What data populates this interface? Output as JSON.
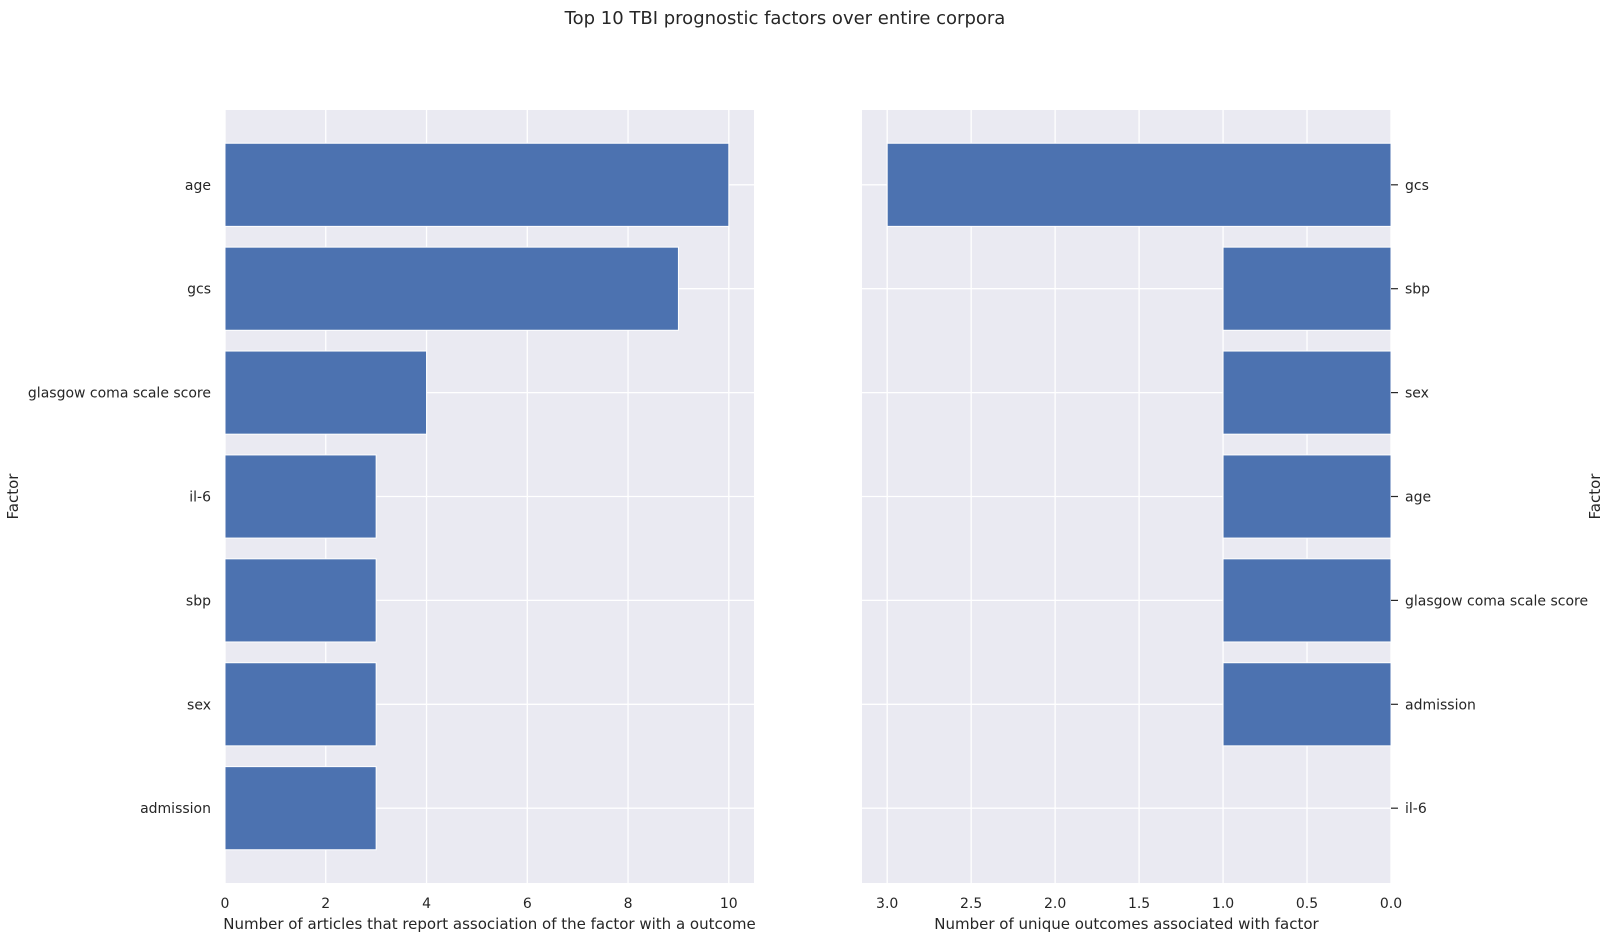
{
  "figure_title": "Top 10 TBI prognostic factors over entire corpora",
  "chart_data": [
    {
      "type": "bar",
      "orientation": "horizontal",
      "categories": [
        "age",
        "gcs",
        "glasgow coma scale score",
        "il-6",
        "sbp",
        "sex",
        "admission"
      ],
      "values": [
        10,
        9,
        4,
        3,
        3,
        3,
        3
      ],
      "xlabel": "Number of articles that report association of the factor with a outcome",
      "ylabel": "Factor",
      "xlim": [
        0,
        10.5
      ],
      "xticks": [
        "0",
        "2",
        "4",
        "6",
        "8",
        "10"
      ],
      "x_inverted": false,
      "yaxis_side": "left",
      "grid": true,
      "bar_color": "#4c72b0",
      "background": "#eaeaf2"
    },
    {
      "type": "bar",
      "orientation": "horizontal",
      "categories": [
        "gcs",
        "sbp",
        "sex",
        "age",
        "glasgow coma scale score",
        "admission",
        "il-6"
      ],
      "values": [
        3,
        1,
        1,
        1,
        1,
        1,
        0
      ],
      "xlabel": "Number of unique outcomes associated with factor",
      "ylabel": "Factor",
      "xlim": [
        0,
        3.15
      ],
      "xticks": [
        "3.0",
        "2.5",
        "2.0",
        "1.5",
        "1.0",
        "0.5",
        "0.0"
      ],
      "x_inverted": true,
      "yaxis_side": "right",
      "grid": true,
      "bar_color": "#4c72b0",
      "background": "#eaeaf2"
    }
  ]
}
